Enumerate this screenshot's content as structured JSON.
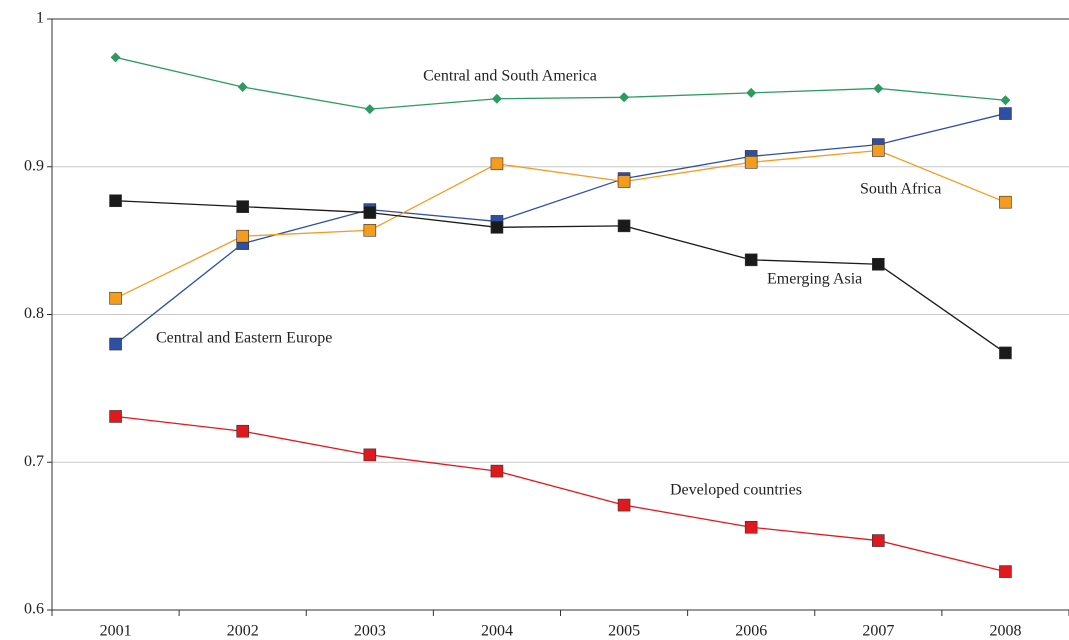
{
  "chart_data": {
    "type": "line",
    "categories": [
      "2001",
      "2002",
      "2003",
      "2004",
      "2005",
      "2006",
      "2007",
      "2008"
    ],
    "series": [
      {
        "name": "Central and South America",
        "color": "#2e9a62",
        "marker": "diamond",
        "values": [
          0.974,
          0.954,
          0.939,
          0.946,
          0.947,
          0.95,
          0.953,
          0.945
        ]
      },
      {
        "name": "Central and Eastern Europe",
        "color": "#2e4fa3",
        "marker": "square",
        "values": [
          0.78,
          0.848,
          0.871,
          0.863,
          0.892,
          0.907,
          0.915,
          0.936
        ]
      },
      {
        "name": "South Africa",
        "color": "#f39c1f",
        "marker": "square",
        "values": [
          0.811,
          0.853,
          0.857,
          0.902,
          0.89,
          0.903,
          0.911,
          0.876
        ]
      },
      {
        "name": "Emerging Asia",
        "color": "#1a1a1a",
        "marker": "square",
        "values": [
          0.877,
          0.873,
          0.869,
          0.859,
          0.86,
          0.837,
          0.834,
          0.774
        ]
      },
      {
        "name": "Developed countries",
        "color": "#e0191e",
        "marker": "square",
        "values": [
          0.731,
          0.721,
          0.705,
          0.694,
          0.671,
          0.656,
          0.647,
          0.626
        ]
      }
    ],
    "ylim": [
      0.6,
      1
    ],
    "yticks": [
      0.6,
      0.7,
      0.8,
      0.9,
      1
    ],
    "grid": true
  }
}
